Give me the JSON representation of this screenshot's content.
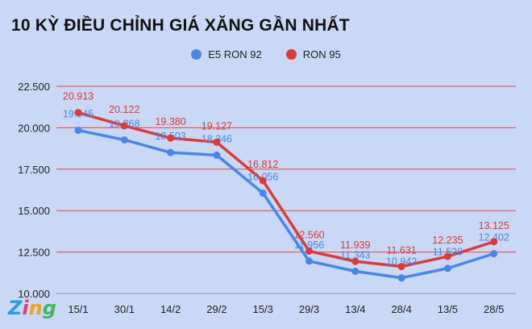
{
  "title": "10 KỲ ĐIỀU CHỈNH GIÁ XĂNG GẦN NHẤT",
  "logo": {
    "z": "Z",
    "i": "i",
    "n": "n",
    "g": "g"
  },
  "chart_data": {
    "type": "line",
    "title": "10 KỲ ĐIỀU CHỈNH GIÁ XĂNG GẦN NHẤT",
    "categories": [
      "15/1",
      "30/1",
      "14/2",
      "29/2",
      "15/3",
      "29/3",
      "13/4",
      "28/4",
      "13/5",
      "28/5"
    ],
    "yticks": [
      "10.000",
      "12.500",
      "15.000",
      "17.500",
      "20.000",
      "22.500"
    ],
    "ylim": [
      10000,
      22500
    ],
    "grid": true,
    "legend_position": "top-center",
    "series": [
      {
        "name": "E5 RON 92",
        "color": "#4a86e8",
        "values": [
          19845,
          19268,
          18503,
          18346,
          16056,
          11956,
          11343,
          10942,
          11520,
          12402
        ],
        "labels": [
          "19.845",
          "19.268",
          "18.503",
          "18.346",
          "16.056",
          "11.956",
          "11.343",
          "10.942",
          "11.520",
          "12.402"
        ]
      },
      {
        "name": "RON 95",
        "color": "#db3b3b",
        "values": [
          20913,
          20122,
          19380,
          19127,
          16812,
          12560,
          11939,
          11631,
          12235,
          13125
        ],
        "labels": [
          "20.913",
          "20.122",
          "19.380",
          "19.127",
          "16.812",
          "12.560",
          "11.939",
          "11.631",
          "12.235",
          "13.125"
        ]
      }
    ]
  }
}
